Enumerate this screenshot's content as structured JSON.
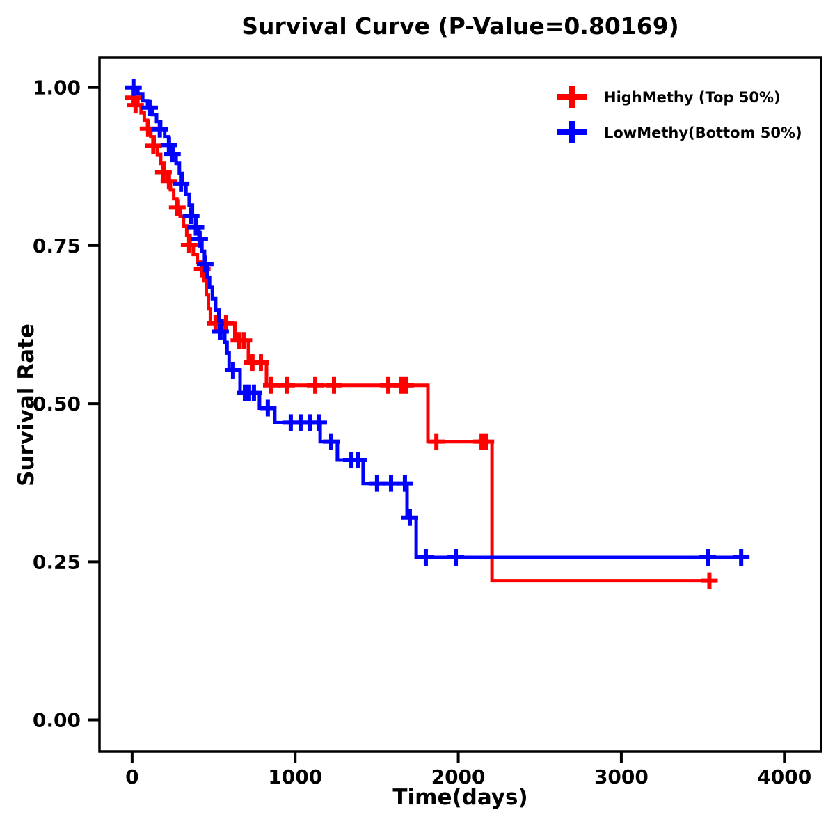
{
  "page": {
    "background": "#ffffff"
  },
  "chart_data": {
    "type": "line",
    "subtype": "kaplan_meier_step_survival",
    "title": "Survival Curve (P-Value=0.80169)",
    "p_value": "0.80169",
    "xlabel": "Time(days)",
    "ylabel": "Survival Rate",
    "x_ticks": [
      0,
      1000,
      2000,
      3000,
      4000
    ],
    "y_ticks": [
      1.0,
      0.75,
      0.5,
      0.25,
      0.0
    ],
    "y_tick_labels": [
      "1.00",
      "0.75",
      "0.50",
      "0.25",
      "0.00"
    ],
    "xlim": [
      -200,
      4225
    ],
    "ylim": [
      -0.05,
      1.047
    ],
    "grid": false,
    "legend_position": "top-right-inside",
    "frame_color": "#000000",
    "text_color": "#000000",
    "series": [
      {
        "name": "HighMethy (Top 50%)",
        "color": "#FF0000",
        "start": [
          0,
          1.0
        ],
        "steps": [
          [
            15,
            0.984
          ],
          [
            35,
            0.972
          ],
          [
            55,
            0.96
          ],
          [
            75,
            0.948
          ],
          [
            95,
            0.935
          ],
          [
            115,
            0.922
          ],
          [
            135,
            0.908
          ],
          [
            155,
            0.894
          ],
          [
            175,
            0.88
          ],
          [
            195,
            0.866
          ],
          [
            215,
            0.852
          ],
          [
            235,
            0.838
          ],
          [
            255,
            0.824
          ],
          [
            275,
            0.81
          ],
          [
            295,
            0.796
          ],
          [
            315,
            0.781
          ],
          [
            335,
            0.766
          ],
          [
            355,
            0.751
          ],
          [
            375,
            0.736
          ],
          [
            400,
            0.724
          ],
          [
            427,
            0.713
          ],
          [
            440,
            0.695
          ],
          [
            455,
            0.672
          ],
          [
            468,
            0.65
          ],
          [
            480,
            0.627
          ],
          [
            630,
            0.6
          ],
          [
            713,
            0.565
          ],
          [
            824,
            0.529
          ],
          [
            1814,
            0.44
          ],
          [
            2207,
            0.22
          ]
        ],
        "line_end_day": 3560,
        "censors": [
          [
            5,
            0.984
          ],
          [
            21,
            0.972
          ],
          [
            98,
            0.935
          ],
          [
            130,
            0.908
          ],
          [
            192,
            0.866
          ],
          [
            226,
            0.852
          ],
          [
            277,
            0.81
          ],
          [
            350,
            0.751
          ],
          [
            430,
            0.713
          ],
          [
            512,
            0.627
          ],
          [
            576,
            0.627
          ],
          [
            655,
            0.6
          ],
          [
            685,
            0.6
          ],
          [
            738,
            0.565
          ],
          [
            790,
            0.565
          ],
          [
            854,
            0.529
          ],
          [
            948,
            0.529
          ],
          [
            1123,
            0.529
          ],
          [
            1238,
            0.529
          ],
          [
            1571,
            0.529
          ],
          [
            1652,
            0.529
          ],
          [
            1678,
            0.529
          ],
          [
            1866,
            0.44
          ],
          [
            2143,
            0.44
          ],
          [
            2169,
            0.44
          ],
          [
            3540,
            0.22
          ]
        ]
      },
      {
        "name": "LowMethy(Bottom 50%)",
        "color": "#0000FF",
        "start": [
          0,
          1.0
        ],
        "steps": [
          [
            35,
            0.99
          ],
          [
            65,
            0.979
          ],
          [
            95,
            0.968
          ],
          [
            125,
            0.957
          ],
          [
            150,
            0.946
          ],
          [
            175,
            0.934
          ],
          [
            200,
            0.922
          ],
          [
            225,
            0.909
          ],
          [
            250,
            0.895
          ],
          [
            270,
            0.88
          ],
          [
            290,
            0.864
          ],
          [
            310,
            0.848
          ],
          [
            330,
            0.831
          ],
          [
            350,
            0.814
          ],
          [
            370,
            0.797
          ],
          [
            390,
            0.779
          ],
          [
            410,
            0.76
          ],
          [
            428,
            0.741
          ],
          [
            444,
            0.721
          ],
          [
            460,
            0.7
          ],
          [
            475,
            0.684
          ],
          [
            492,
            0.666
          ],
          [
            512,
            0.648
          ],
          [
            532,
            0.631
          ],
          [
            552,
            0.614
          ],
          [
            568,
            0.597
          ],
          [
            582,
            0.58
          ],
          [
            595,
            0.553
          ],
          [
            662,
            0.517
          ],
          [
            781,
            0.493
          ],
          [
            875,
            0.47
          ],
          [
            1153,
            0.44
          ],
          [
            1259,
            0.411
          ],
          [
            1417,
            0.374
          ],
          [
            1686,
            0.32
          ],
          [
            1742,
            0.257
          ]
        ],
        "line_end_day": 3740,
        "censors": [
          [
            8,
            1.0
          ],
          [
            107,
            0.968
          ],
          [
            170,
            0.934
          ],
          [
            226,
            0.909
          ],
          [
            247,
            0.895
          ],
          [
            300,
            0.848
          ],
          [
            362,
            0.797
          ],
          [
            391,
            0.779
          ],
          [
            414,
            0.76
          ],
          [
            448,
            0.721
          ],
          [
            542,
            0.614
          ],
          [
            619,
            0.553
          ],
          [
            692,
            0.517
          ],
          [
            717,
            0.517
          ],
          [
            747,
            0.517
          ],
          [
            832,
            0.493
          ],
          [
            973,
            0.47
          ],
          [
            1033,
            0.47
          ],
          [
            1089,
            0.47
          ],
          [
            1144,
            0.47
          ],
          [
            1221,
            0.44
          ],
          [
            1345,
            0.411
          ],
          [
            1387,
            0.411
          ],
          [
            1502,
            0.374
          ],
          [
            1588,
            0.374
          ],
          [
            1673,
            0.374
          ],
          [
            1703,
            0.32
          ],
          [
            1801,
            0.257
          ],
          [
            1985,
            0.257
          ],
          [
            3530,
            0.257
          ],
          [
            3735,
            0.257
          ]
        ]
      }
    ]
  }
}
